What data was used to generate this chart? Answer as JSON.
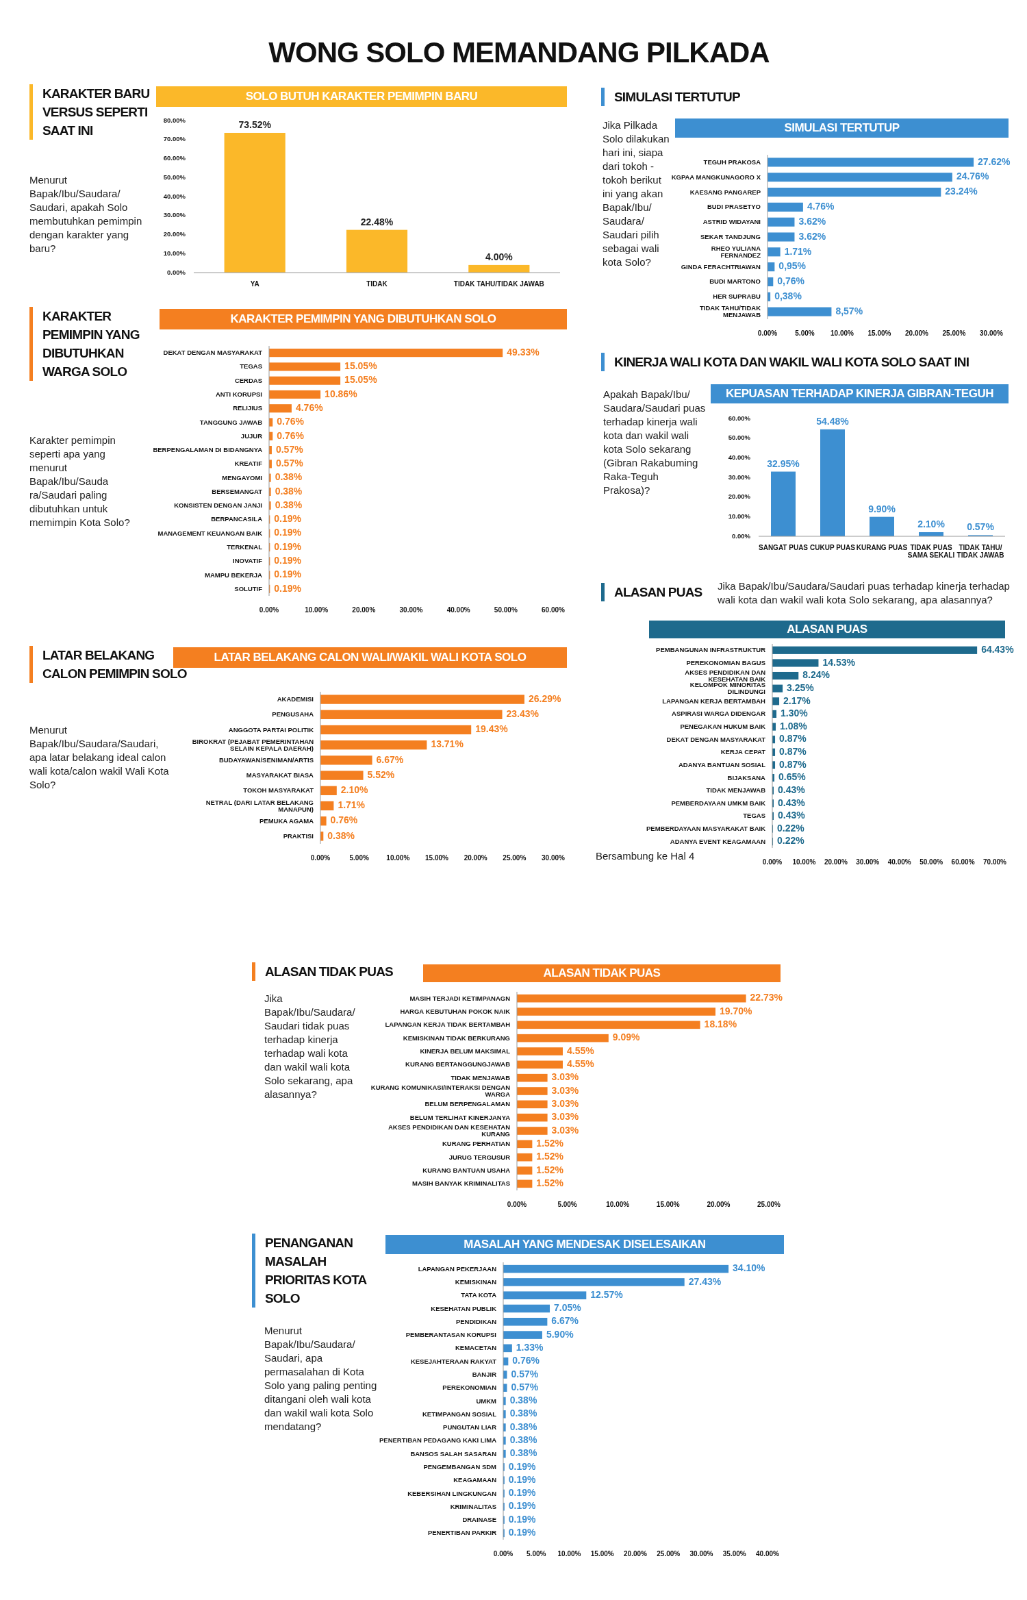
{
  "chart_data": [
    {
      "type": "other",
      "title": "WONG SOLO MEMANDANG PILKADA"
    },
    {
      "type": "bar",
      "title": "SOLO BUTUH KARAKTER PEMIMPIN BARU",
      "subtitle": "KARAKTER BARU VERSUS SEPERTI SAAT INI",
      "annotations": [
        "Menurut Bapak/Ibu/Saudara/ Saudari, apakah Solo membutuhkan pemimpin dengan karakter yang baru?"
      ],
      "categories": [
        "YA",
        "TIDAK",
        "TIDAK TAHU/TIDAK JAWAB"
      ],
      "values": [
        73.52,
        22.48,
        4.0
      ],
      "value_labels": [
        "73.52%",
        "22.48%",
        "4.00%"
      ],
      "color": "#fbb829",
      "ylim": [
        0,
        80
      ],
      "yticks": [
        {
          "value": 0,
          "label": "0.00%"
        },
        {
          "value": 10,
          "label": "10.00%"
        },
        {
          "value": 20,
          "label": "20.00%"
        },
        {
          "value": 30,
          "label": "30.00%"
        },
        {
          "value": 40,
          "label": "40.00%"
        },
        {
          "value": 50,
          "label": "50.00%"
        },
        {
          "value": 60,
          "label": "60.00%"
        },
        {
          "value": 70,
          "label": "70.00%"
        },
        {
          "value": 80,
          "label": "80.00%"
        }
      ]
    },
    {
      "type": "bar",
      "orientation": "horizontal",
      "title": "KARAKTER PEMIMPIN YANG DIBUTUHKAN SOLO",
      "subtitle": "KARAKTER PEMIMPIN YANG DIBUTUHKAN WARGA SOLO",
      "annotations": [
        "Karakter pemimpin seperti apa yang menurut Bapak/Ibu/Sauda ra/Saudari paling dibutuhkan untuk memimpin Kota Solo?"
      ],
      "categories": [
        "DEKAT DENGAN MASYARAKAT",
        "TEGAS",
        "CERDAS",
        "ANTI KORUPSI",
        "RELIJIUS",
        "TANGGUNG JAWAB",
        "JUJUR",
        "BERPENGALAMAN DI BIDANGNYA",
        "KREATIF",
        "MENGAYOMI",
        "BERSEMANGAT",
        "KONSISTEN DENGAN JANJI",
        "BERPANCASILA",
        "MANAGEMENT KEUANGAN BAIK",
        "TERKENAL",
        "INOVATIF",
        "MAMPU BEKERJA",
        "SOLUTIF"
      ],
      "values": [
        49.33,
        15.05,
        15.05,
        10.86,
        4.76,
        0.76,
        0.76,
        0.57,
        0.57,
        0.38,
        0.38,
        0.38,
        0.19,
        0.19,
        0.19,
        0.19,
        0.19,
        0.19
      ],
      "value_labels": [
        "49.33%",
        "15.05%",
        "15.05%",
        "10.86%",
        "4.76%",
        "0.76%",
        "0.76%",
        "0.57%",
        "0.57%",
        "0.38%",
        "0.38%",
        "0.38%",
        "0.19%",
        "0.19%",
        "0.19%",
        "0.19%",
        "0.19%",
        "0.19%"
      ],
      "color": "#f47f20",
      "xlim": [
        0,
        60
      ],
      "xticks": [
        {
          "value": 0,
          "label": "0.00%"
        },
        {
          "value": 10,
          "label": "10.00%"
        },
        {
          "value": 20,
          "label": "20.00%"
        },
        {
          "value": 30,
          "label": "30.00%"
        },
        {
          "value": 40,
          "label": "40.00%"
        },
        {
          "value": 50,
          "label": "50.00%"
        },
        {
          "value": 60,
          "label": "60.00%"
        }
      ]
    },
    {
      "type": "bar",
      "orientation": "horizontal",
      "title": "LATAR BELAKANG CALON WALI/WAKIL WALI KOTA SOLO",
      "subtitle": "LATAR BELAKANG CALON PEMIMPIN SOLO",
      "annotations": [
        "Menurut Bapak/Ibu/Saudara/Saudari, apa latar belakang ideal calon wali kota/calon wakil Wali Kota Solo?"
      ],
      "categories": [
        "AKADEMISI",
        "PENGUSAHA",
        "ANGGOTA PARTAI POLITIK",
        "BIROKRAT (PEJABAT PEMERINTAHAN SELAIN KEPALA DAERAH)",
        "BUDAYAWAN/SENIMAN/ARTIS",
        "MASYARAKAT BIASA",
        "TOKOH MASYARAKAT",
        "NETRAL (DARI LATAR BELAKANG MANAPUN)",
        "PEMUKA AGAMA",
        "PRAKTISI"
      ],
      "values": [
        26.29,
        23.43,
        19.43,
        13.71,
        6.67,
        5.52,
        2.1,
        1.71,
        0.76,
        0.38
      ],
      "value_labels": [
        "26.29%",
        "23.43%",
        "19.43%",
        "13.71%",
        "6.67%",
        "5.52%",
        "2.10%",
        "1.71%",
        "0.76%",
        "0.38%"
      ],
      "color": "#f47f20",
      "xlim": [
        0,
        30
      ],
      "xticks": [
        {
          "value": 0,
          "label": "0.00%"
        },
        {
          "value": 5,
          "label": "5.00%"
        },
        {
          "value": 10,
          "label": "10.00%"
        },
        {
          "value": 15,
          "label": "15.00%"
        },
        {
          "value": 20,
          "label": "20.00%"
        },
        {
          "value": 25,
          "label": "25.00%"
        },
        {
          "value": 30,
          "label": "30.00%"
        }
      ]
    },
    {
      "type": "bar",
      "orientation": "horizontal",
      "title": "SIMULASI TERTUTUP",
      "subtitle": "SIMULASI TERTUTUP",
      "annotations": [
        "Jika Pilkada Solo dilakukan hari ini, siapa dari tokoh -tokoh berikut ini yang akan Bapak/Ibu/ Saudara/ Saudari pilih sebagai wali kota Solo?"
      ],
      "categories": [
        "TEGUH PRAKOSA",
        "KGPAA MANGKUNAGORO X",
        "KAESANG PANGAREP",
        "BUDI PRASETYO",
        "ASTRID WIDAYANI",
        "SEKAR TANDJUNG",
        "RHEO YULIANA FERNANDEZ",
        "GINDA FERACHTRIAWAN",
        "BUDI MARTONO",
        "HER SUPRABU",
        "TIDAK TAHU/TIDAK MENJAWAB"
      ],
      "values": [
        27.62,
        24.76,
        23.24,
        4.76,
        3.62,
        3.62,
        1.71,
        0.95,
        0.76,
        0.38,
        8.57
      ],
      "value_labels": [
        "27.62%",
        "24.76%",
        "23.24%",
        "4.76%",
        "3.62%",
        "3.62%",
        "1.71%",
        "0,95%",
        "0,76%",
        "0,38%",
        "8,57%"
      ],
      "color": "#3d8fd1",
      "xlim": [
        0,
        30
      ],
      "xticks": [
        {
          "value": 0,
          "label": "0.00%"
        },
        {
          "value": 5,
          "label": "5.00%"
        },
        {
          "value": 10,
          "label": "10.00%"
        },
        {
          "value": 15,
          "label": "15.00%"
        },
        {
          "value": 20,
          "label": "20.00%"
        },
        {
          "value": 25,
          "label": "25.00%"
        },
        {
          "value": 30,
          "label": "30.00%"
        }
      ]
    },
    {
      "type": "bar",
      "title": "KEPUASAN TERHADAP KINERJA GIBRAN-TEGUH",
      "subtitle": "KINERJA WALI KOTA DAN WAKIL WALI  KOTA SOLO SAAT INI",
      "annotations": [
        "Apakah Bapak/Ibu/ Saudara/Saudari puas terhadap kinerja wali kota dan wakil wali kota Solo sekarang (Gibran Rakabuming Raka-Teguh Prakosa)?"
      ],
      "categories": [
        "SANGAT PUAS",
        "CUKUP PUAS",
        "KURANG PUAS",
        "TIDAK PUAS SAMA SEKALI",
        "TIDAK TAHU/ TIDAK JAWAB"
      ],
      "values": [
        32.95,
        54.48,
        9.9,
        2.1,
        0.57
      ],
      "value_labels": [
        "32.95%",
        "54.48%",
        "9.90%",
        "2.10%",
        "0.57%"
      ],
      "color": "#3d8fd1",
      "ylim": [
        0,
        60
      ],
      "yticks": [
        {
          "value": 0,
          "label": "0.00%"
        },
        {
          "value": 10,
          "label": "10.00%"
        },
        {
          "value": 20,
          "label": "20.00%"
        },
        {
          "value": 30,
          "label": "30.00%"
        },
        {
          "value": 40,
          "label": "40.00%"
        },
        {
          "value": 50,
          "label": "50.00%"
        },
        {
          "value": 60,
          "label": "60.00%"
        }
      ]
    },
    {
      "type": "bar",
      "orientation": "horizontal",
      "title": "ALASAN PUAS",
      "subtitle": "ALASAN PUAS",
      "annotations": [
        "Jika Bapak/Ibu/Saudara/Saudari puas terhadap kinerja terhadap wali kota dan wakil wali kota Solo sekarang, apa alasannya?",
        "Bersambung ke Hal 4"
      ],
      "categories": [
        "PEMBANGUNAN INFRASTRUKTUR",
        "PEREKONOMIAN BAGUS",
        "AKSES PENDIDIKAN DAN KESEHATAN BAIK",
        "KELOMPOK MINORITAS DILINDUNGI",
        "LAPANGAN KERJA BERTAMBAH",
        "ASPIRASI WARGA DIDENGAR",
        "PENEGAKAN HUKUM BAIK",
        "DEKAT DENGAN MASYARAKAT",
        "KERJA CEPAT",
        "ADANYA BANTUAN SOSIAL",
        "BIJAKSANA",
        "TIDAK MENJAWAB",
        "PEMBERDAYAAN UMKM BAIK",
        "TEGAS",
        "PEMBERDAYAAN MASYARAKAT BAIK",
        "ADANYA EVENT KEAGAMAAN"
      ],
      "values": [
        64.43,
        14.53,
        8.24,
        3.25,
        2.17,
        1.3,
        1.08,
        0.87,
        0.87,
        0.87,
        0.65,
        0.43,
        0.43,
        0.43,
        0.22,
        0.22
      ],
      "value_labels": [
        "64.43%",
        "14.53%",
        "8.24%",
        "3.25%",
        "2.17%",
        "1.30%",
        "1.08%",
        "0.87%",
        "0.87%",
        "0.87%",
        "0.65%",
        "0.43%",
        "0.43%",
        "0.43%",
        "0.22%",
        "0.22%"
      ],
      "color": "#1e6a8d",
      "xlim": [
        0,
        70
      ],
      "xticks": [
        {
          "value": 0,
          "label": "0.00%"
        },
        {
          "value": 10,
          "label": "10.00%"
        },
        {
          "value": 20,
          "label": "20.00%"
        },
        {
          "value": 30,
          "label": "30.00%"
        },
        {
          "value": 40,
          "label": "40.00%"
        },
        {
          "value": 50,
          "label": "50.00%"
        },
        {
          "value": 60,
          "label": "60.00%"
        },
        {
          "value": 70,
          "label": "70.00%"
        }
      ]
    },
    {
      "type": "bar",
      "orientation": "horizontal",
      "title": "ALASAN TIDAK PUAS",
      "subtitle": "ALASAN TIDAK PUAS",
      "annotations": [
        "Jika Bapak/Ibu/Saudara/ Saudari tidak puas terhadap kinerja terhadap wali kota dan wakil wali kota Solo sekarang, apa alasannya?"
      ],
      "categories": [
        "MASIH TERJADI KETIMPANAGN",
        "HARGA KEBUTUHAN POKOK NAIK",
        "LAPANGAN KERJA TIDAK BERTAMBAH",
        "KEMISKINAN TIDAK BERKURANG",
        "KINERJA BELUM MAKSIMAL",
        "KURANG BERTANGGUNGJAWAB",
        "TIDAK MENJAWAB",
        "KURANG KOMUNIKASI/INTERAKSI DENGAN WARGA",
        "BELUM BERPENGALAMAN",
        "BELUM TERLIHAT KINERJANYA",
        "AKSES PENDIDIKAN DAN KESEHATAN KURANG",
        "KURANG PERHATIAN",
        "JURUG TERGUSUR",
        "KURANG BANTUAN USAHA",
        "MASIH BANYAK KRIMINALITAS"
      ],
      "values": [
        22.73,
        19.7,
        18.18,
        9.09,
        4.55,
        4.55,
        3.03,
        3.03,
        3.03,
        3.03,
        3.03,
        1.52,
        1.52,
        1.52,
        1.52
      ],
      "value_labels": [
        "22.73%",
        "19.70%",
        "18.18%",
        "9.09%",
        "4.55%",
        "4.55%",
        "3.03%",
        "3.03%",
        "3.03%",
        "3.03%",
        "3.03%",
        "1.52%",
        "1.52%",
        "1.52%",
        "1.52%"
      ],
      "color": "#f47f20",
      "xlim": [
        0,
        25
      ],
      "xticks": [
        {
          "value": 0,
          "label": "0.00%"
        },
        {
          "value": 5,
          "label": "5.00%"
        },
        {
          "value": 10,
          "label": "10.00%"
        },
        {
          "value": 15,
          "label": "15.00%"
        },
        {
          "value": 20,
          "label": "20.00%"
        },
        {
          "value": 25,
          "label": "25.00%"
        }
      ]
    },
    {
      "type": "bar",
      "orientation": "horizontal",
      "title": "MASALAH YANG MENDESAK DISELESAIKAN",
      "subtitle": "PENANGANAN MASALAH PRIORITAS KOTA SOLO",
      "annotations": [
        "Menurut Bapak/Ibu/Saudara/ Saudari, apa permasalahan di Kota Solo yang paling penting ditangani oleh wali kota dan wakil wali kota Solo mendatang?"
      ],
      "categories": [
        "LAPANGAN PEKERJAAN",
        "KEMISKINAN",
        "TATA KOTA",
        "KESEHATAN PUBLIK",
        "PENDIDIKAN",
        "PEMBERANTASAN KORUPSI",
        "KEMACETAN",
        "KESEJAHTERAAN RAKYAT",
        "BANJIR",
        "PEREKONOMIAN",
        "UMKM",
        "KETIMPANGAN SOSIAL",
        "PUNGUTAN LIAR",
        "PENERTIBAN PEDAGANG KAKI LIMA",
        "BANSOS SALAH SASARAN",
        "PENGEMBANGAN SDM",
        "KEAGAMAAN",
        "KEBERSIHAN LINGKUNGAN",
        "KRIMINALITAS",
        "DRAINASE",
        "PENERTIBAN PARKIR"
      ],
      "values": [
        34.1,
        27.43,
        12.57,
        7.05,
        6.67,
        5.9,
        1.33,
        0.76,
        0.57,
        0.57,
        0.38,
        0.38,
        0.38,
        0.38,
        0.38,
        0.19,
        0.19,
        0.19,
        0.19,
        0.19,
        0.19
      ],
      "value_labels": [
        "34.10%",
        "27.43%",
        "12.57%",
        "7.05%",
        "6.67%",
        "5.90%",
        "1.33%",
        "0.76%",
        "0.57%",
        "0.57%",
        "0.38%",
        "0.38%",
        "0.38%",
        "0.38%",
        "0.38%",
        "0.19%",
        "0.19%",
        "0.19%",
        "0.19%",
        "0.19%",
        "0.19%"
      ],
      "color": "#3d8fd1",
      "xlim": [
        0,
        40
      ],
      "xticks": [
        {
          "value": 0,
          "label": "0.00%"
        },
        {
          "value": 5,
          "label": "5.00%"
        },
        {
          "value": 10,
          "label": "10.00%"
        },
        {
          "value": 15,
          "label": "15.00%"
        },
        {
          "value": 20,
          "label": "20.00%"
        },
        {
          "value": 25,
          "label": "25.00%"
        },
        {
          "value": 30,
          "label": "30.00%"
        },
        {
          "value": 35,
          "label": "35.00%"
        },
        {
          "value": 40,
          "label": "40.00%"
        }
      ]
    }
  ]
}
